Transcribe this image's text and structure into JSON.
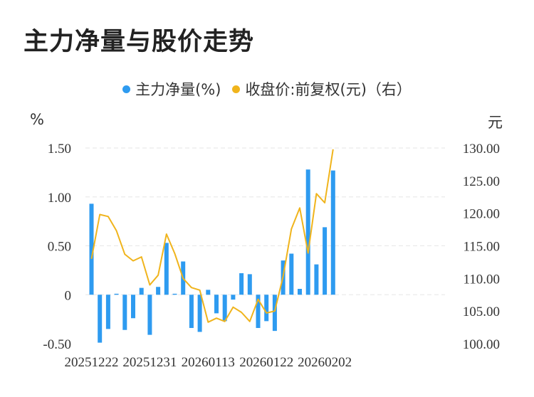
{
  "title": "主力净量与股价走势",
  "legend": {
    "series1": "主力净量(%)",
    "series2": "收盘价:前复权(元)（右）"
  },
  "units": {
    "left": "%",
    "right": "元"
  },
  "colors": {
    "bar": "#2e9bf0",
    "line": "#f0b41c",
    "grid": "#e6e6e6"
  },
  "chart_data": {
    "type": "bar+line",
    "title": "主力净量与股价走势",
    "x_tick_labels": [
      "20251222",
      "20251231",
      "20260113",
      "20260122",
      "20260202"
    ],
    "x_tick_indices": [
      0,
      7,
      14,
      21,
      28
    ],
    "y_left": {
      "label": "%",
      "ylim": [
        -0.5,
        1.5
      ],
      "ticks": [
        -0.5,
        0,
        0.5,
        1.0,
        1.5
      ],
      "tick_labels": [
        "-0.50",
        "0",
        "0.50",
        "1.00",
        "1.50"
      ]
    },
    "y_right": {
      "label": "元",
      "ylim": [
        100,
        130
      ],
      "ticks": [
        100,
        105,
        110,
        115,
        120,
        125,
        130
      ],
      "tick_labels": [
        "100.00",
        "105.00",
        "110.00",
        "115.00",
        "120.00",
        "125.00",
        "130.00"
      ]
    },
    "series": [
      {
        "name": "主力净量(%)",
        "axis": "left",
        "type": "bar",
        "values": [
          0.93,
          -0.49,
          -0.35,
          0.01,
          -0.36,
          -0.24,
          0.07,
          -0.41,
          0.08,
          0.53,
          0.01,
          0.34,
          -0.34,
          -0.38,
          0.05,
          -0.19,
          -0.27,
          -0.05,
          0.22,
          0.21,
          -0.34,
          -0.27,
          -0.37,
          0.35,
          0.42,
          0.06,
          1.28,
          0.31,
          0.69,
          1.27
        ]
      },
      {
        "name": "收盘价:前复权(元)（右）",
        "axis": "right",
        "type": "line",
        "values": [
          113.0,
          119.8,
          119.5,
          117.3,
          113.7,
          112.7,
          113.3,
          109.0,
          110.5,
          116.8,
          113.8,
          110.0,
          108.6,
          108.2,
          103.3,
          103.9,
          103.4,
          105.6,
          104.8,
          103.4,
          106.8,
          104.7,
          105.0,
          110.3,
          117.6,
          120.8,
          113.9,
          123.0,
          121.6,
          129.8
        ]
      }
    ]
  }
}
